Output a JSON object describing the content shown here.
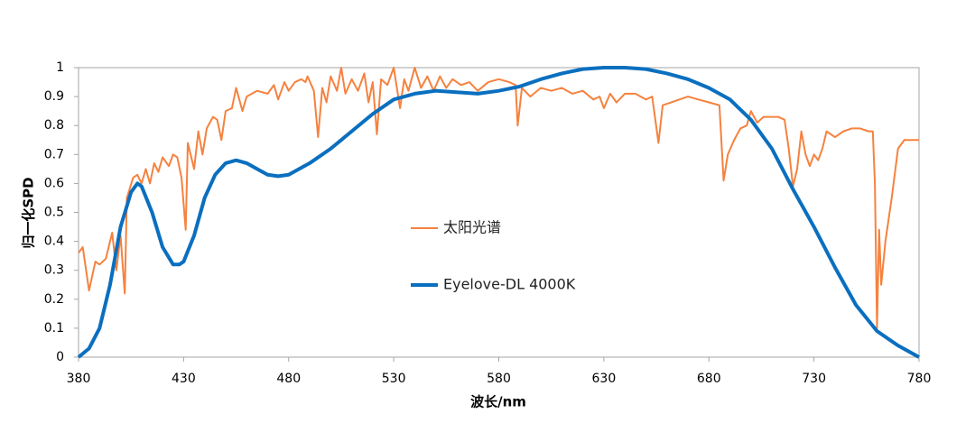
{
  "chart_data": {
    "type": "line",
    "x_label": "波长/nm",
    "y_label": "归一化SPD",
    "xlim": [
      380,
      780
    ],
    "xticks": [
      380,
      430,
      480,
      530,
      580,
      630,
      680,
      730,
      780
    ],
    "ylim": [
      0,
      1
    ],
    "yticks": [
      0,
      0.1,
      0.2,
      0.3,
      0.4,
      0.5,
      0.6,
      0.7,
      0.8,
      0.9,
      1
    ],
    "grid": false,
    "legend": "center",
    "series": [
      {
        "name": "太阳光谱",
        "color": "#f5823f",
        "width": 2,
        "x": [
          380,
          382,
          385,
          388,
          390,
          393,
          396,
          398,
          400,
          402,
          403,
          406,
          408,
          410,
          412,
          414,
          416,
          418,
          420,
          423,
          425,
          427,
          429,
          431,
          432,
          435,
          437,
          439,
          441,
          444,
          446,
          448,
          450,
          453,
          455,
          458,
          460,
          465,
          470,
          473,
          475,
          478,
          480,
          483,
          486,
          488,
          489,
          492,
          494,
          496,
          498,
          500,
          503,
          505,
          507,
          510,
          513,
          516,
          518,
          520,
          522,
          524,
          527,
          530,
          533,
          535,
          537,
          540,
          543,
          546,
          549,
          552,
          555,
          558,
          562,
          566,
          570,
          575,
          580,
          585,
          588,
          589,
          591,
          595,
          600,
          605,
          610,
          615,
          620,
          625,
          628,
          630,
          633,
          636,
          640,
          645,
          650,
          653,
          656,
          658,
          662,
          666,
          670,
          675,
          680,
          685,
          687,
          689,
          692,
          695,
          698,
          700,
          703,
          706,
          710,
          713,
          716,
          718,
          720,
          722,
          724,
          726,
          728,
          730,
          732,
          734,
          736,
          740,
          744,
          748,
          752,
          756,
          758,
          759,
          760,
          761,
          762,
          764,
          767,
          770,
          773,
          776,
          780
        ],
        "values": [
          0.36,
          0.38,
          0.23,
          0.33,
          0.32,
          0.34,
          0.43,
          0.3,
          0.42,
          0.22,
          0.55,
          0.62,
          0.63,
          0.6,
          0.65,
          0.6,
          0.67,
          0.64,
          0.69,
          0.66,
          0.7,
          0.69,
          0.62,
          0.44,
          0.74,
          0.65,
          0.78,
          0.7,
          0.79,
          0.83,
          0.82,
          0.75,
          0.85,
          0.86,
          0.93,
          0.85,
          0.9,
          0.92,
          0.91,
          0.94,
          0.89,
          0.95,
          0.92,
          0.95,
          0.96,
          0.95,
          0.97,
          0.92,
          0.76,
          0.93,
          0.88,
          0.97,
          0.92,
          1.0,
          0.91,
          0.96,
          0.92,
          0.98,
          0.88,
          0.95,
          0.77,
          0.96,
          0.94,
          1.0,
          0.86,
          0.96,
          0.92,
          1.0,
          0.93,
          0.97,
          0.92,
          0.97,
          0.93,
          0.96,
          0.94,
          0.95,
          0.92,
          0.95,
          0.96,
          0.95,
          0.94,
          0.8,
          0.93,
          0.9,
          0.93,
          0.92,
          0.93,
          0.91,
          0.92,
          0.89,
          0.9,
          0.86,
          0.91,
          0.88,
          0.91,
          0.91,
          0.89,
          0.9,
          0.74,
          0.87,
          0.88,
          0.89,
          0.9,
          0.89,
          0.88,
          0.87,
          0.61,
          0.7,
          0.75,
          0.79,
          0.8,
          0.85,
          0.81,
          0.83,
          0.83,
          0.83,
          0.82,
          0.72,
          0.59,
          0.65,
          0.78,
          0.7,
          0.66,
          0.7,
          0.68,
          0.72,
          0.78,
          0.76,
          0.78,
          0.79,
          0.79,
          0.78,
          0.78,
          0.6,
          0.1,
          0.44,
          0.25,
          0.4,
          0.55,
          0.72,
          0.75,
          0.75,
          0.75
        ]
      },
      {
        "name": "Eyelove-DL 4000K",
        "color": "#0a6fbf",
        "width": 4,
        "x": [
          380,
          385,
          390,
          395,
          400,
          405,
          408,
          410,
          415,
          420,
          425,
          428,
          430,
          435,
          440,
          445,
          450,
          455,
          460,
          465,
          470,
          475,
          480,
          490,
          500,
          510,
          520,
          530,
          540,
          550,
          560,
          570,
          580,
          590,
          600,
          610,
          620,
          630,
          640,
          650,
          660,
          670,
          680,
          690,
          700,
          710,
          720,
          730,
          740,
          750,
          760,
          770,
          780
        ],
        "values": [
          0.0,
          0.03,
          0.1,
          0.25,
          0.45,
          0.57,
          0.6,
          0.59,
          0.5,
          0.38,
          0.32,
          0.32,
          0.33,
          0.42,
          0.55,
          0.63,
          0.67,
          0.68,
          0.67,
          0.65,
          0.63,
          0.625,
          0.63,
          0.67,
          0.72,
          0.78,
          0.84,
          0.89,
          0.91,
          0.92,
          0.915,
          0.91,
          0.92,
          0.935,
          0.96,
          0.98,
          0.995,
          1.0,
          1.0,
          0.995,
          0.98,
          0.96,
          0.93,
          0.89,
          0.82,
          0.72,
          0.58,
          0.45,
          0.31,
          0.18,
          0.09,
          0.04,
          0.0
        ]
      }
    ]
  }
}
